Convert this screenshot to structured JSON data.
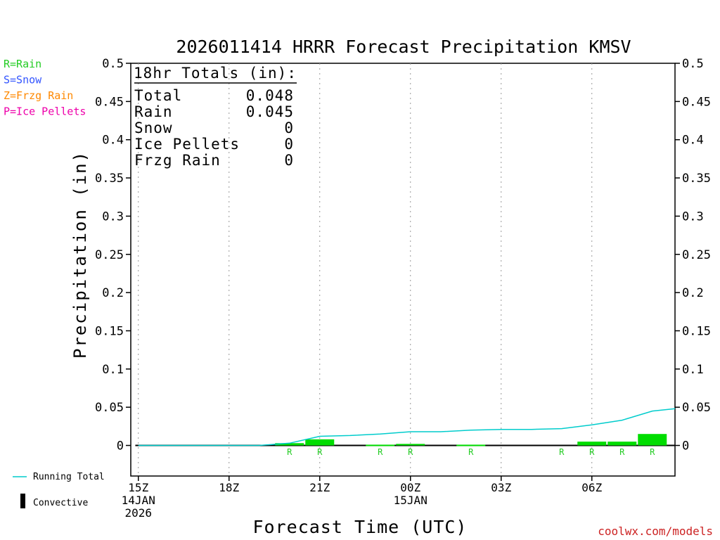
{
  "title": "2026011414 HRRR Forecast Precipitation KMSV",
  "ylabel": "Precipitation (in)",
  "xlabel": "Forecast Time (UTC)",
  "credit": "coolwx.com/models",
  "colors": {
    "rain": "#00dd00",
    "snow": "#3333ff",
    "frzg_rain": "#ff8800",
    "ice_pellets": "#ee00aa",
    "running_total": "#00cccc",
    "convective": "#000000"
  },
  "type_legend": [
    {
      "label": "R=Rain",
      "color": "#22cc22"
    },
    {
      "label": "S=Snow",
      "color": "#3355ff"
    },
    {
      "label": "Z=Frzg Rain",
      "color": "#ff8800"
    },
    {
      "label": "P=Ice Pellets",
      "color": "#ee00aa"
    }
  ],
  "bottom_legend": {
    "running_total": "Running Total",
    "convective": "Convective"
  },
  "totals": {
    "header": "18hr Totals (in):",
    "rows": [
      {
        "label": "Total",
        "value": "0.048"
      },
      {
        "label": "Rain",
        "value": "0.045"
      },
      {
        "label": "Snow",
        "value": "0"
      },
      {
        "label": "Ice Pellets",
        "value": "0"
      },
      {
        "label": "Frzg Rain",
        "value": "0"
      }
    ]
  },
  "chart_data": {
    "type": "bar",
    "title": "2026011414 HRRR Forecast Precipitation KMSV",
    "xlabel": "Forecast Time (UTC)",
    "ylabel": "Precipitation (in)",
    "ylim": [
      -0.04,
      0.5
    ],
    "xlim_hours": [
      -0.25,
      17.75
    ],
    "yticks": [
      "0",
      "0.05",
      "0.1",
      "0.15",
      "0.2",
      "0.25",
      "0.3",
      "0.35",
      "0.4",
      "0.45",
      "0.5"
    ],
    "xticks": [
      {
        "hour": 0,
        "lines": [
          "15Z",
          "14JAN",
          "2026"
        ]
      },
      {
        "hour": 3,
        "lines": [
          "18Z"
        ]
      },
      {
        "hour": 6,
        "lines": [
          "21Z"
        ]
      },
      {
        "hour": 9,
        "lines": [
          "00Z",
          "15JAN"
        ]
      },
      {
        "hour": 12,
        "lines": [
          "03Z"
        ]
      },
      {
        "hour": 15,
        "lines": [
          "06Z"
        ]
      }
    ],
    "grid": "vertical dotted at tick hours",
    "bars": [
      {
        "hour": 5,
        "value": 0.003,
        "type": "R"
      },
      {
        "hour": 6,
        "value": 0.008,
        "type": "R"
      },
      {
        "hour": 7,
        "value": 0.0,
        "type": ""
      },
      {
        "hour": 8,
        "value": 0.001,
        "type": "R"
      },
      {
        "hour": 9,
        "value": 0.002,
        "type": "R"
      },
      {
        "hour": 10,
        "value": 0.0,
        "type": ""
      },
      {
        "hour": 11,
        "value": 0.001,
        "type": "R"
      },
      {
        "hour": 14,
        "value": 0.0,
        "type": "R"
      },
      {
        "hour": 15,
        "value": 0.005,
        "type": "R"
      },
      {
        "hour": 16,
        "value": 0.005,
        "type": "R"
      },
      {
        "hour": 17,
        "value": 0.015,
        "type": "R"
      }
    ],
    "running_total": {
      "name": "Running Total",
      "hours": [
        0,
        1,
        2,
        3,
        4,
        5,
        6,
        7,
        8,
        9,
        10,
        11,
        12,
        13,
        14,
        15,
        16,
        17,
        17.75
      ],
      "values": [
        0,
        0,
        0,
        0,
        0,
        0.003,
        0.012,
        0.013,
        0.015,
        0.018,
        0.018,
        0.02,
        0.021,
        0.021,
        0.022,
        0.027,
        0.033,
        0.045,
        0.048
      ]
    }
  }
}
